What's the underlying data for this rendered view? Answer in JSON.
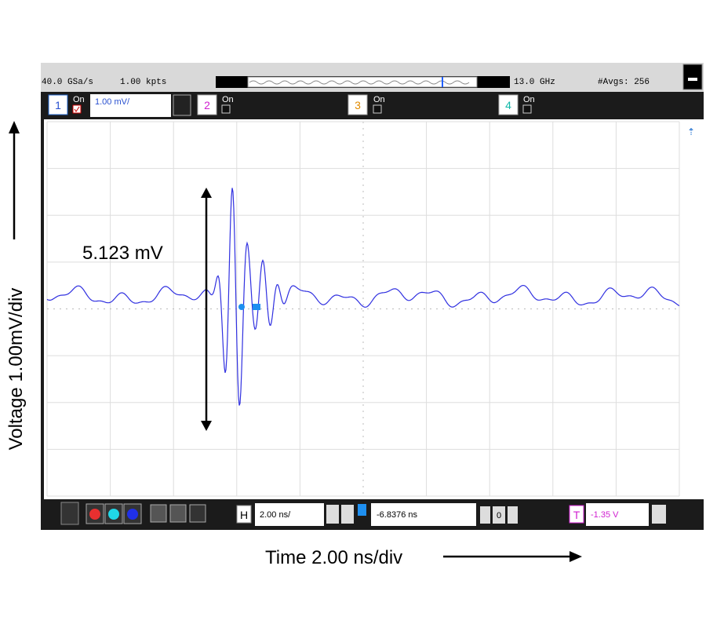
{
  "header": {
    "sample_rate": "40.0 GSa/s",
    "points": "1.00 kpts",
    "bandwidth": "13.0 GHz",
    "averages": "#Avgs: 256"
  },
  "channels": [
    {
      "number": "1",
      "state": "On",
      "scale": "1.00 mV/"
    },
    {
      "number": "2",
      "state": "On"
    },
    {
      "number": "3",
      "state": "On"
    },
    {
      "number": "4",
      "state": "On"
    }
  ],
  "footer": {
    "horizontal_icon": "H",
    "time_scale": "2.00 ns/",
    "delay": "-6.8376 ns",
    "delay_ref": "0",
    "trigger_icon": "T",
    "trigger_level": "-1.35 V"
  },
  "annotations": {
    "amplitude": "5.123  mV",
    "y_axis": "Voltage 1.00mV/div",
    "x_axis": "Time 2.00 ns/div"
  }
}
